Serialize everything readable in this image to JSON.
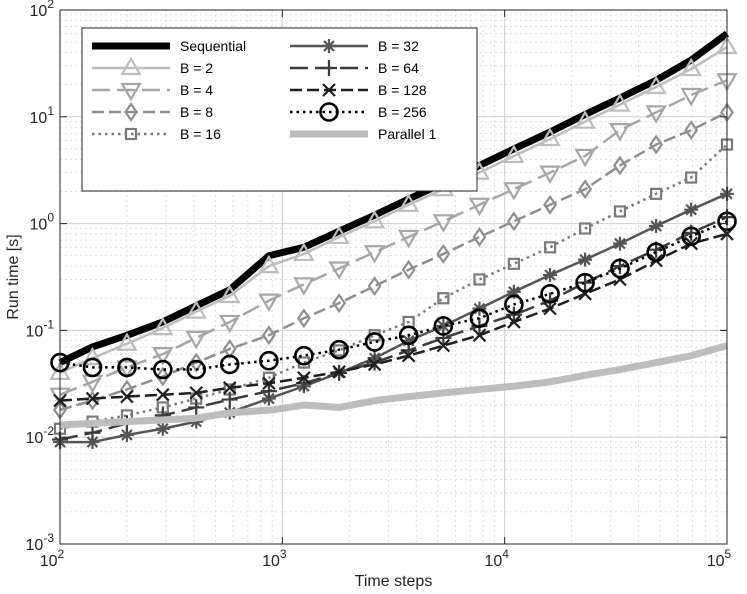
{
  "chart_data": {
    "type": "line",
    "xscale": "log",
    "yscale": "log",
    "xlabel": "Time steps",
    "ylabel": "Run time [s]",
    "xlim": [
      100,
      100000
    ],
    "ylim": [
      0.001,
      100
    ],
    "xticks": [
      {
        "value": 100,
        "base": "10",
        "exp": "2"
      },
      {
        "value": 1000,
        "base": "10",
        "exp": "3"
      },
      {
        "value": 10000,
        "base": "10",
        "exp": "4"
      },
      {
        "value": 100000,
        "base": "10",
        "exp": "5"
      }
    ],
    "yticks": [
      {
        "value": 0.001,
        "base": "10",
        "exp": "-3"
      },
      {
        "value": 0.01,
        "base": "10",
        "exp": "-2"
      },
      {
        "value": 0.1,
        "base": "10",
        "exp": "-1"
      },
      {
        "value": 1,
        "base": "10",
        "exp": "0"
      },
      {
        "value": 10,
        "base": "10",
        "exp": "1"
      },
      {
        "value": 100,
        "base": "10",
        "exp": "2"
      }
    ],
    "grid": true,
    "legend_position": "top-left",
    "series": [
      {
        "name": "Sequential",
        "color": "#000000",
        "width": 7,
        "dash": "",
        "marker": "none",
        "x": [
          100,
          140,
          200,
          290,
          410,
          580,
          870,
          1250,
          1800,
          2600,
          3700,
          5300,
          7700,
          11000,
          16000,
          23000,
          33000,
          48000,
          69000,
          100000
        ],
        "y": [
          0.05,
          0.07,
          0.09,
          0.12,
          0.17,
          0.24,
          0.5,
          0.6,
          0.85,
          1.2,
          1.7,
          2.4,
          3.5,
          5.0,
          7.2,
          10.5,
          15,
          22,
          34,
          60
        ]
      },
      {
        "name": "B = 2",
        "color": "#bdbdbd",
        "width": 2.5,
        "dash": "",
        "marker": "triangle-up",
        "x": [
          100,
          140,
          200,
          290,
          410,
          580,
          870,
          1250,
          1800,
          2600,
          3700,
          5300,
          7700,
          11000,
          16000,
          23000,
          33000,
          48000,
          69000,
          100000
        ],
        "y": [
          0.04,
          0.055,
          0.075,
          0.105,
          0.15,
          0.21,
          0.4,
          0.52,
          0.75,
          1.05,
          1.5,
          2.1,
          3.0,
          4.3,
          6.2,
          9.0,
          13,
          19,
          28,
          45
        ]
      },
      {
        "name": "B = 4",
        "color": "#a6a6a6",
        "width": 2.5,
        "dash": "18 7",
        "marker": "triangle-down",
        "x": [
          100,
          140,
          200,
          290,
          410,
          580,
          870,
          1250,
          1800,
          2600,
          3700,
          5300,
          7700,
          11000,
          16000,
          23000,
          33000,
          48000,
          69000,
          100000
        ],
        "y": [
          0.025,
          0.033,
          0.045,
          0.06,
          0.085,
          0.12,
          0.19,
          0.27,
          0.38,
          0.54,
          0.75,
          1.05,
          1.5,
          2.1,
          3.0,
          4.3,
          7.5,
          11,
          16,
          22
        ]
      },
      {
        "name": "B = 8",
        "color": "#8f8f8f",
        "width": 2.5,
        "dash": "12 5",
        "marker": "diamond",
        "x": [
          100,
          140,
          200,
          290,
          410,
          580,
          870,
          1250,
          1800,
          2600,
          3700,
          5300,
          7700,
          11000,
          16000,
          23000,
          33000,
          48000,
          69000,
          100000
        ],
        "y": [
          0.018,
          0.022,
          0.028,
          0.037,
          0.05,
          0.067,
          0.09,
          0.13,
          0.18,
          0.26,
          0.37,
          0.52,
          0.75,
          1.05,
          1.5,
          2.1,
          3.5,
          5.5,
          7.5,
          11
        ]
      },
      {
        "name": "B = 16",
        "color": "#7a7a7a",
        "width": 2.5,
        "dash": "2.5 4",
        "marker": "square",
        "x": [
          100,
          140,
          200,
          290,
          410,
          580,
          870,
          1250,
          1800,
          2600,
          3700,
          5300,
          7700,
          11000,
          16000,
          23000,
          33000,
          48000,
          69000,
          100000
        ],
        "y": [
          0.012,
          0.014,
          0.016,
          0.019,
          0.023,
          0.028,
          0.036,
          0.05,
          0.065,
          0.09,
          0.12,
          0.2,
          0.3,
          0.42,
          0.6,
          0.9,
          1.3,
          1.9,
          2.7,
          5.5
        ]
      },
      {
        "name": "B = 32",
        "color": "#555555",
        "width": 2.5,
        "dash": "",
        "marker": "asterisk",
        "x": [
          100,
          140,
          200,
          290,
          410,
          580,
          870,
          1250,
          1800,
          2600,
          3700,
          5300,
          7700,
          11000,
          16000,
          23000,
          33000,
          48000,
          69000,
          100000
        ],
        "y": [
          0.009,
          0.009,
          0.0105,
          0.012,
          0.014,
          0.017,
          0.023,
          0.03,
          0.04,
          0.055,
          0.08,
          0.11,
          0.16,
          0.23,
          0.33,
          0.46,
          0.65,
          0.95,
          1.35,
          1.9
        ]
      },
      {
        "name": "B = 64",
        "color": "#3c3c3c",
        "width": 2.5,
        "dash": "18 7",
        "marker": "plus",
        "x": [
          100,
          140,
          200,
          290,
          410,
          580,
          870,
          1250,
          1800,
          2600,
          3700,
          5300,
          7700,
          11000,
          16000,
          23000,
          33000,
          48000,
          69000,
          100000
        ],
        "y": [
          0.0095,
          0.011,
          0.0135,
          0.016,
          0.019,
          0.0225,
          0.027,
          0.032,
          0.04,
          0.05,
          0.065,
          0.085,
          0.11,
          0.14,
          0.19,
          0.28,
          0.4,
          0.57,
          0.82,
          1.15
        ]
      },
      {
        "name": "B = 128",
        "color": "#1f1f1f",
        "width": 2.5,
        "dash": "12 5",
        "marker": "x",
        "x": [
          100,
          140,
          200,
          290,
          410,
          580,
          870,
          1250,
          1800,
          2600,
          3700,
          5300,
          7700,
          11000,
          16000,
          23000,
          33000,
          48000,
          69000,
          100000
        ],
        "y": [
          0.022,
          0.023,
          0.024,
          0.025,
          0.026,
          0.029,
          0.032,
          0.036,
          0.041,
          0.048,
          0.058,
          0.072,
          0.09,
          0.12,
          0.16,
          0.22,
          0.3,
          0.45,
          0.65,
          0.8
        ]
      },
      {
        "name": "B = 256",
        "color": "#000000",
        "width": 2.5,
        "dash": "2.5 4",
        "marker": "circle",
        "x": [
          100,
          140,
          200,
          290,
          410,
          580,
          870,
          1250,
          1800,
          2600,
          3700,
          5300,
          7700,
          11000,
          16000,
          23000,
          33000,
          48000,
          69000,
          100000
        ],
        "y": [
          0.05,
          0.045,
          0.045,
          0.043,
          0.043,
          0.048,
          0.052,
          0.058,
          0.066,
          0.078,
          0.09,
          0.11,
          0.13,
          0.175,
          0.22,
          0.28,
          0.38,
          0.54,
          0.76,
          1.05
        ]
      },
      {
        "name": "Parallel 1",
        "color": "#bdbdbd",
        "width": 7,
        "dash": "",
        "marker": "none",
        "x": [
          100,
          200,
          400,
          600,
          900,
          1250,
          1800,
          2600,
          3700,
          5300,
          7700,
          11000,
          16000,
          23000,
          33000,
          48000,
          69000,
          100000
        ],
        "y": [
          0.013,
          0.014,
          0.015,
          0.017,
          0.018,
          0.02,
          0.019,
          0.022,
          0.024,
          0.026,
          0.028,
          0.03,
          0.033,
          0.038,
          0.043,
          0.05,
          0.058,
          0.072
        ]
      }
    ]
  }
}
